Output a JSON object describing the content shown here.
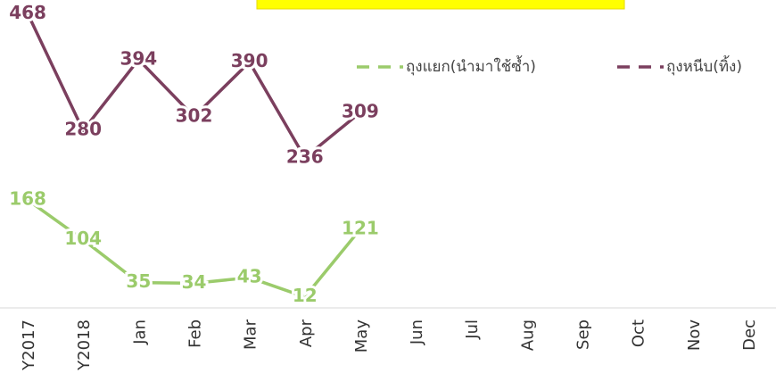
{
  "chart_data": {
    "type": "line",
    "categories": [
      "Y2017",
      "Y2018",
      "Jan",
      "Feb",
      "Mar",
      "Apr",
      "May",
      "Jun",
      "Jul",
      "Aug",
      "Sep",
      "Oct",
      "Nov",
      "Dec"
    ],
    "series": [
      {
        "name": "ถุงแยก(นำมาใช้ซ้ำ)",
        "color": "#9bcb6b",
        "values": [
          168,
          104,
          35,
          34,
          43,
          12,
          121,
          null,
          null,
          null,
          null,
          null,
          null,
          null
        ]
      },
      {
        "name": "ถุงหนีบ(ทิ้ง)",
        "color": "#7b3f5e",
        "values": [
          468,
          280,
          394,
          302,
          390,
          236,
          309,
          null,
          null,
          null,
          null,
          null,
          null,
          null
        ]
      }
    ],
    "ylim": [
      0,
      490
    ],
    "legend": "top-right"
  }
}
